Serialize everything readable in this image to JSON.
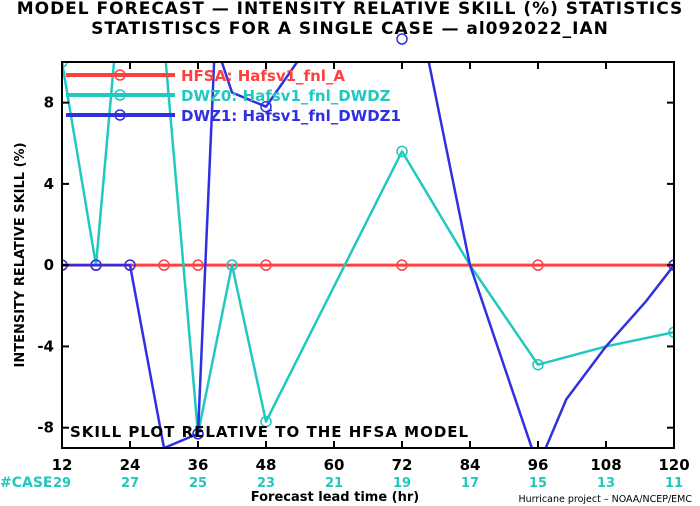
{
  "titles": {
    "line1": "MODEL FORECAST — INTENSITY RELATIVE SKILL (%) STATISTICS",
    "line2": "STATISTISCS FOR A SINGLE CASE — al092022_IAN"
  },
  "footer": {
    "case_label": "#CASE",
    "credit": "Hurricane project – NOAA/NCEP/EMC"
  },
  "chart_data": {
    "type": "line",
    "xlabel": "Forecast lead time (hr)",
    "ylabel": "INTENSITY RELATIVE SKILL (%)",
    "xlim": [
      12,
      120
    ],
    "ylim": [
      -9,
      10
    ],
    "x_ticks": [
      12,
      24,
      36,
      48,
      60,
      72,
      84,
      96,
      108,
      120
    ],
    "y_ticks": [
      -8,
      -4,
      0,
      4,
      8
    ],
    "case_counts": [
      29,
      27,
      25,
      23,
      21,
      19,
      17,
      15,
      13,
      11
    ],
    "annotation": "SKILL PLOT RELATIVE TO THE HFSA MODEL",
    "grid": false,
    "legend_position": "top-left",
    "series": [
      {
        "name": "HFSA:  Hafsv1_fnl_A",
        "color": "#ff4040",
        "width": 3,
        "points": [
          [
            12,
            0
          ],
          [
            18,
            0
          ],
          [
            24,
            0
          ],
          [
            30,
            0
          ],
          [
            36,
            0
          ],
          [
            42,
            0
          ],
          [
            48,
            0
          ],
          [
            72,
            0
          ],
          [
            96,
            0
          ],
          [
            120,
            0
          ]
        ],
        "markers": [
          [
            12,
            0
          ],
          [
            18,
            0
          ],
          [
            24,
            0
          ],
          [
            30,
            0
          ],
          [
            36,
            0
          ],
          [
            42,
            0
          ],
          [
            48,
            0
          ],
          [
            72,
            0
          ],
          [
            96,
            0
          ],
          [
            120,
            0
          ]
        ]
      },
      {
        "name": "DWZ0:  Hafsv1_fnl_DWDZ",
        "color": "#20c8c0",
        "width": 2.5,
        "points": [
          [
            12,
            10
          ],
          [
            18,
            0
          ],
          [
            21.5,
            11
          ],
          [
            30,
            11
          ],
          [
            36,
            -8.3
          ],
          [
            42,
            0
          ],
          [
            48,
            -7.7
          ],
          [
            72,
            5.6
          ],
          [
            84,
            0
          ],
          [
            96,
            -4.9
          ],
          [
            108,
            -4
          ],
          [
            120,
            -3.3
          ]
        ],
        "markers": [
          [
            12,
            10
          ],
          [
            18,
            0
          ],
          [
            36,
            -8.3
          ],
          [
            42,
            0
          ],
          [
            48,
            -7.7
          ],
          [
            72,
            5.6
          ],
          [
            96,
            -4.9
          ],
          [
            120,
            -3.3
          ]
        ]
      },
      {
        "name": "DWZ1:  Hafsv1_fnl_DWDZ1",
        "color": "#3030e0",
        "width": 2.5,
        "points": [
          [
            12,
            0
          ],
          [
            24,
            0
          ],
          [
            30,
            -9
          ],
          [
            36,
            -8.3
          ],
          [
            39,
            11
          ],
          [
            42,
            8.5
          ],
          [
            48,
            7.8
          ],
          [
            56,
            11
          ],
          [
            76,
            11
          ],
          [
            84,
            0
          ],
          [
            96,
            -9.9
          ],
          [
            101,
            -6.6
          ],
          [
            108,
            -4
          ],
          [
            115,
            -1.8
          ],
          [
            120,
            0
          ]
        ],
        "markers": [
          [
            12,
            0
          ],
          [
            18,
            0
          ],
          [
            24,
            0
          ],
          [
            36,
            -8.3
          ],
          [
            48,
            7.8
          ],
          [
            72,
            11
          ],
          [
            96,
            -9.9
          ],
          [
            120,
            0
          ]
        ]
      }
    ]
  }
}
